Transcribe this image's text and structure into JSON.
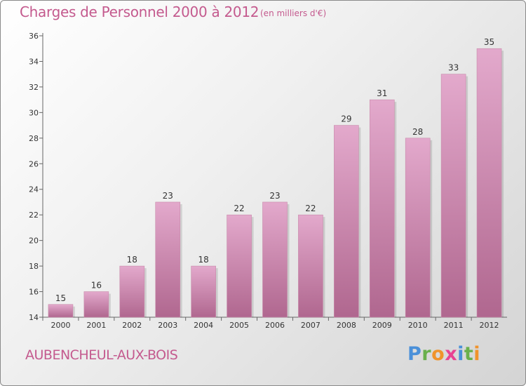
{
  "header": {
    "title": "Charges de Personnel 2000 à 2012",
    "subtitle": "(en milliers d'€)"
  },
  "footer": {
    "town": "AUBENCHEUL-AUX-BOIS",
    "logo": [
      "P",
      "r",
      "o",
      "x",
      "i",
      "t",
      "i"
    ],
    "logo_colors": [
      "#4a90d9",
      "#6ab04c",
      "#f0932b",
      "#e84393",
      "#4a90d9",
      "#6ab04c",
      "#f0932b"
    ]
  },
  "colors": {
    "bar_top": "#e3a9cc",
    "bar_bottom": "#b0678f",
    "accent": "#c45a8e"
  },
  "chart_data": {
    "type": "bar",
    "title": "Charges de Personnel 2000 à 2012",
    "subtitle": "(en milliers d'€)",
    "xlabel": "",
    "ylabel": "",
    "categories": [
      "2000",
      "2001",
      "2002",
      "2003",
      "2004",
      "2005",
      "2006",
      "2007",
      "2008",
      "2009",
      "2010",
      "2011",
      "2012"
    ],
    "values": [
      15,
      16,
      18,
      23,
      18,
      22,
      23,
      22,
      29,
      31,
      28,
      33,
      35
    ],
    "ylim": [
      14,
      36
    ],
    "yticks": [
      "14",
      "16",
      "18",
      "20",
      "22",
      "24",
      "26",
      "28",
      "30",
      "32",
      "34",
      "36"
    ],
    "grid": false,
    "legend": "none"
  }
}
